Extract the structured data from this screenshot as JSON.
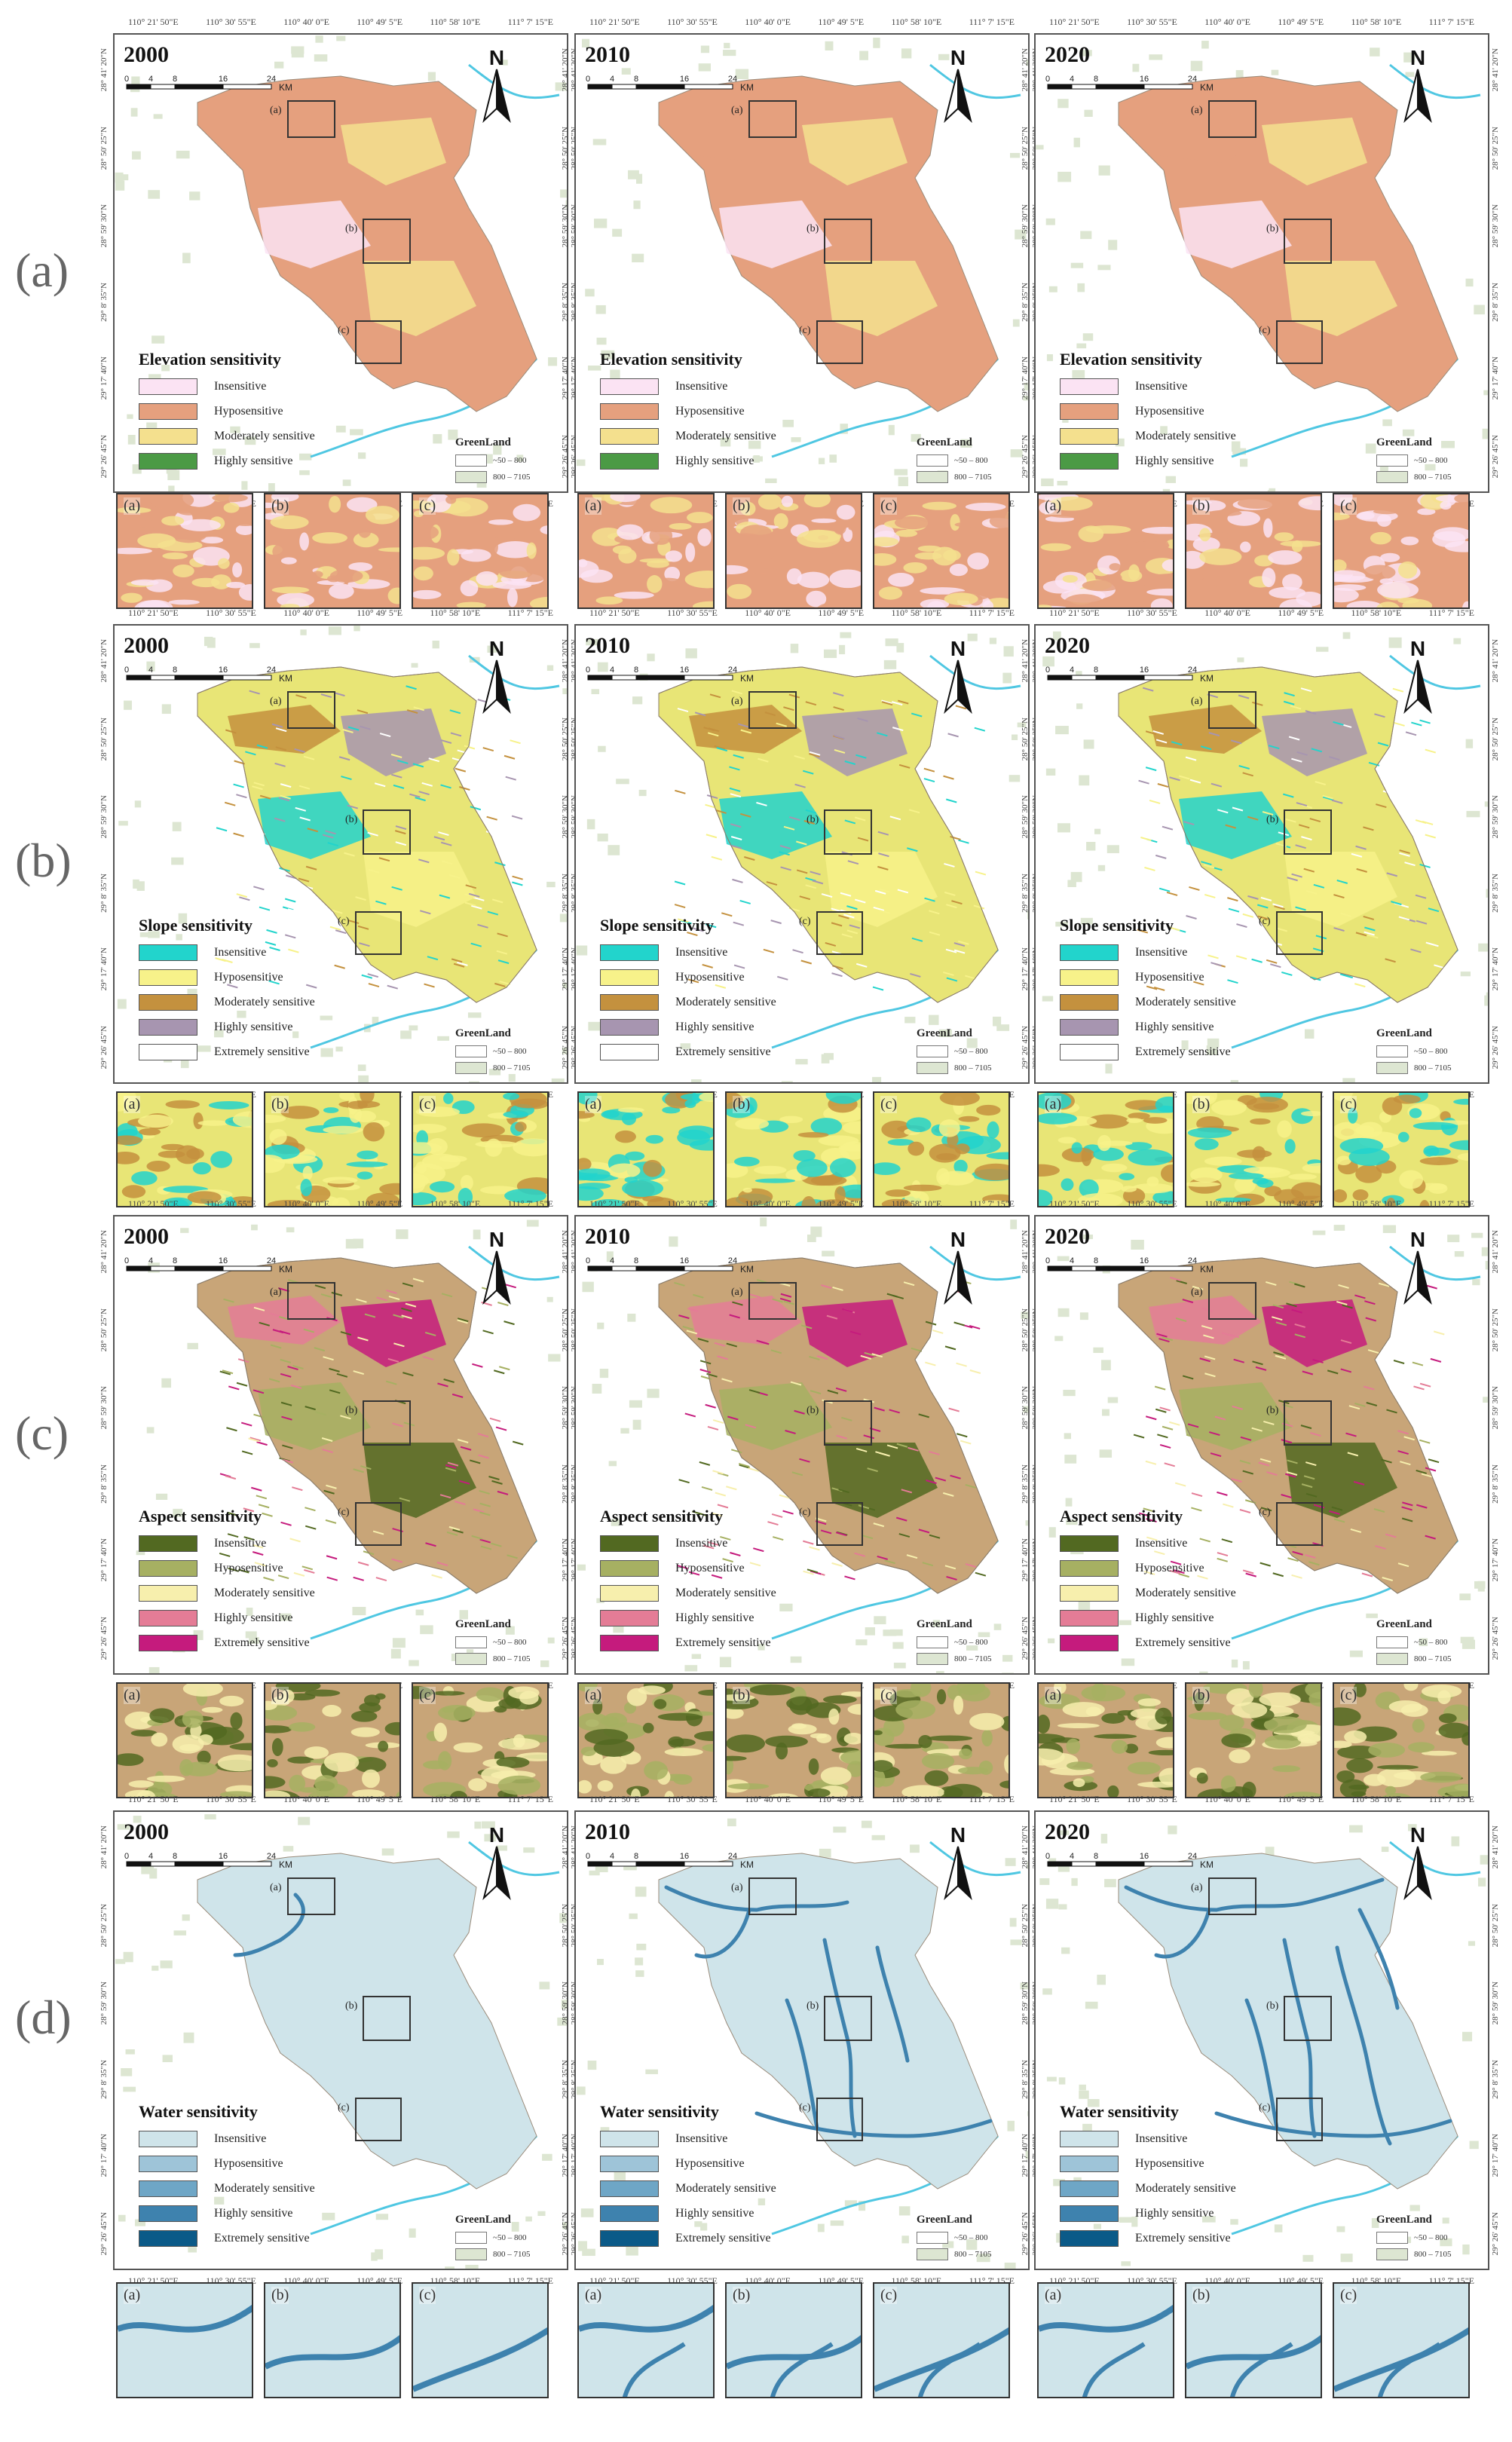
{
  "row_labels": [
    "(a)",
    "(b)",
    "(c)",
    "(d)"
  ],
  "years": [
    "2000",
    "2010",
    "2020"
  ],
  "lon_ticks": [
    "110° 21' 50\"E",
    "110° 30' 55\"E",
    "110° 40' 0\"E",
    "110° 49' 5\"E",
    "110° 58' 10\"E",
    "111° 7' 15\"E"
  ],
  "lat_ticks": [
    "28° 41' 20\"N",
    "28° 50' 25\"N",
    "28° 59' 30\"N",
    "29° 8' 35\"N",
    "29° 17' 40\"N",
    "29° 26' 45\"N"
  ],
  "scalebar": {
    "ticks": [
      "0",
      "4",
      "8",
      "16",
      "24"
    ],
    "unit": "KM"
  },
  "north_label": "N",
  "inset_labels": [
    "(a)",
    "(b)",
    "(c)"
  ],
  "greenland": {
    "title": "GreenLand",
    "items": [
      "~50 – 800",
      "800 – 7105"
    ],
    "colors": [
      "#ffffff",
      "#dde6d2"
    ]
  },
  "rows": [
    {
      "title": "Elevation sensitivity",
      "legend": [
        "Insensitive",
        "Hyposensitive",
        "Moderately sensitive",
        "Highly sensitive"
      ],
      "colors": [
        "#fbe3f3",
        "#e5a07e",
        "#f4e08e",
        "#4b9a45"
      ],
      "base_color": "#e5a07e",
      "patches": [
        1,
        2,
        0,
        2
      ]
    },
    {
      "title": "Slope sensitivity",
      "legend": [
        "Insensitive",
        "Hyposensitive",
        "Moderately sensitive",
        "Highly sensitive",
        "Extremely sensitive"
      ],
      "colors": [
        "#22d4cc",
        "#f7f28a",
        "#c4913e",
        "#a795b0",
        "#ffffff"
      ],
      "base_color": "#e8e576",
      "patches": [
        2,
        3,
        0,
        1
      ]
    },
    {
      "title": "Aspect sensitivity",
      "legend": [
        "Insensitive",
        "Hyposensitive",
        "Moderately sensitive",
        "Highly sensitive",
        "Extremely sensitive"
      ],
      "colors": [
        "#526921",
        "#a6b062",
        "#f7efad",
        "#e47c96",
        "#c51b7d"
      ],
      "base_color": "#c8a578",
      "patches": [
        3,
        4,
        1,
        0
      ]
    },
    {
      "title": "Water sensitivity",
      "legend": [
        "Insensitive",
        "Hyposensitive",
        "Moderately sensitive",
        "Highly sensitive",
        "Extremely sensitive"
      ],
      "colors": [
        "#cfe4ea",
        "#9ec4d8",
        "#6ea6c6",
        "#3e82ae",
        "#0b5a88"
      ],
      "base_color": "#cfe4ea",
      "patches": []
    }
  ]
}
